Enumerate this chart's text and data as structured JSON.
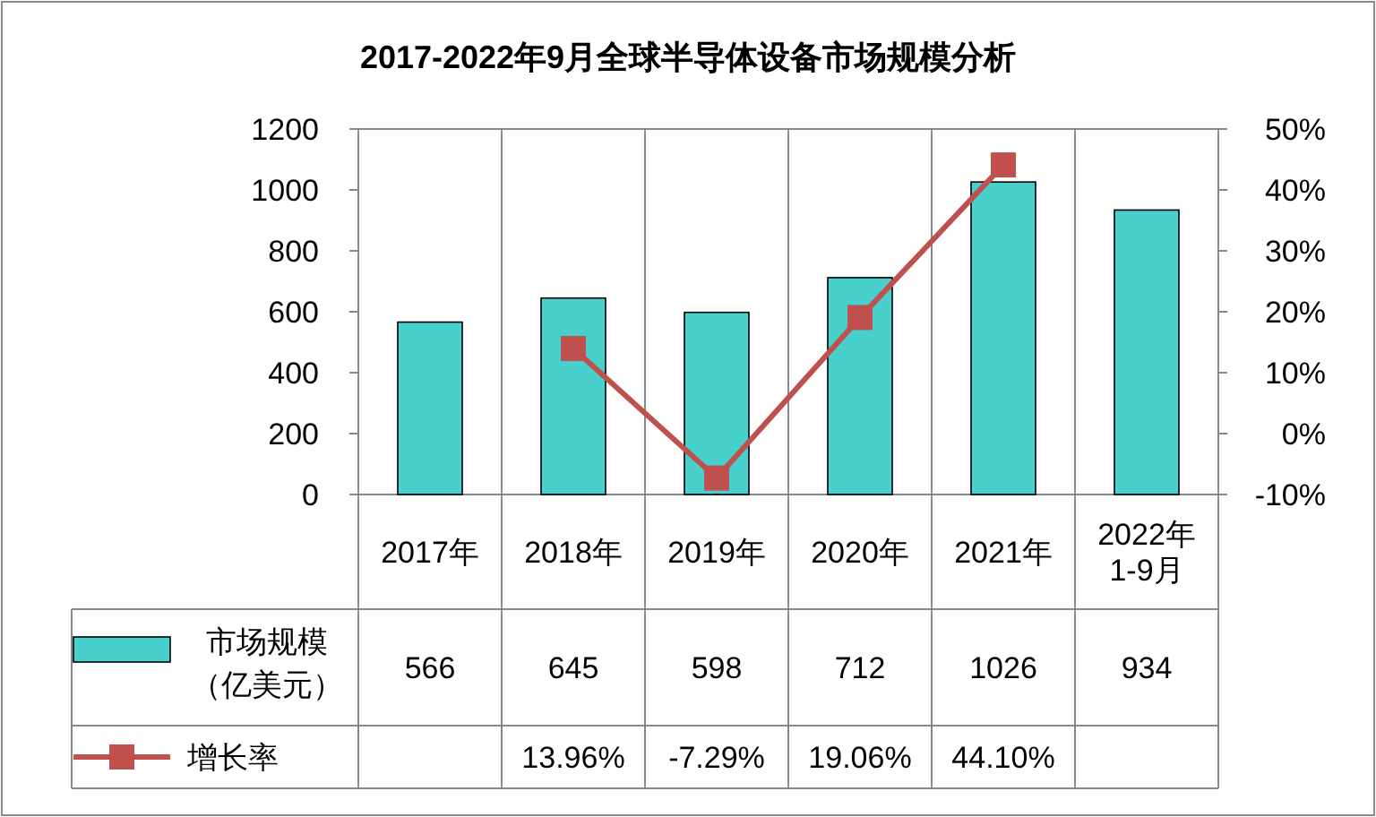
{
  "chart_data": {
    "type": "bar",
    "title": "2017-2022年9月全球半导体设备市场规模分析",
    "categories": [
      "2017年",
      "2018年",
      "2019年",
      "2020年",
      "2021年",
      "2022年\n1-9月"
    ],
    "series": [
      {
        "name": "市场规模（亿美元）",
        "color": "#48d1cc",
        "values": [
          566,
          645,
          598,
          712,
          1026,
          934
        ],
        "value_labels": [
          "566",
          "645",
          "598",
          "712",
          "1026",
          "934"
        ]
      },
      {
        "name": "增长率",
        "type": "line",
        "axis": "y2",
        "color": "#c0504d",
        "marker": "square",
        "values": [
          null,
          13.96,
          -7.29,
          19.06,
          44.1,
          null
        ],
        "value_labels": [
          null,
          "13.96%",
          "-7.29%",
          "19.06%",
          "44.10%",
          null
        ]
      }
    ],
    "ylim": [
      0,
      1200
    ],
    "yticks": [
      0,
      200,
      400,
      600,
      800,
      1000,
      1200
    ],
    "y2lim": [
      -10,
      50
    ],
    "y2ticks": [
      {
        "value": -10,
        "label": "-10%"
      },
      {
        "value": 0,
        "label": "0%"
      },
      {
        "value": 10,
        "label": "10%"
      },
      {
        "value": 20,
        "label": "20%"
      },
      {
        "value": 30,
        "label": "30%"
      },
      {
        "value": 40,
        "label": "40%"
      },
      {
        "value": 50,
        "label": "50%"
      }
    ],
    "legend": "bottom left"
  }
}
